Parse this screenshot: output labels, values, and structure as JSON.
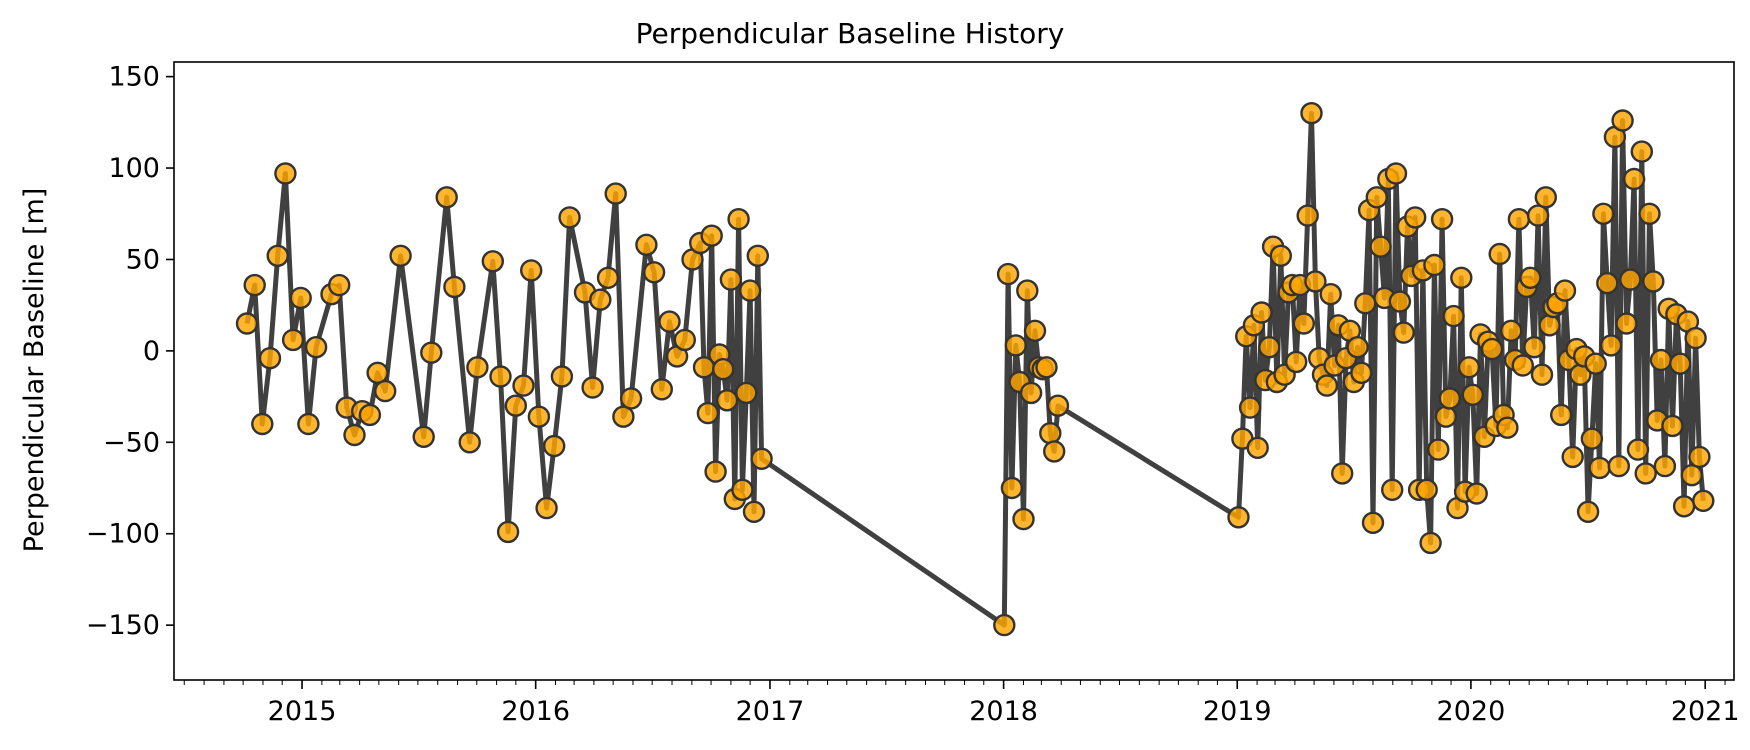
{
  "chart_data": {
    "type": "scatter",
    "title": "Perpendicular Baseline History",
    "xlabel": "",
    "ylabel": "Perpendicular Baseline [m]",
    "xlim": [
      "2014-06-15",
      "2021-02-15"
    ],
    "ylim": [
      -180,
      158
    ],
    "xticks": [
      "2015",
      "2016",
      "2017",
      "2018",
      "2019",
      "2020",
      "2021"
    ],
    "yticks": [
      150,
      100,
      50,
      0,
      -50,
      -100,
      -150
    ],
    "ytick_labels": [
      "150",
      "100",
      "50",
      "0",
      "−50",
      "−100",
      "−150"
    ],
    "grid": false,
    "colors": {
      "marker_fill": "#FFA500",
      "marker_edge": "#333333",
      "line": "#404040",
      "marker_inner_line": "#d98b00"
    },
    "series": [
      {
        "points": [
          [
            "2014-10-07",
            15
          ],
          [
            "2014-10-19",
            36
          ],
          [
            "2014-10-31",
            -40
          ],
          [
            "2014-11-12",
            -4
          ],
          [
            "2014-11-24",
            52
          ],
          [
            "2014-12-06",
            97
          ],
          [
            "2014-12-18",
            6
          ],
          [
            "2014-12-30",
            29
          ],
          [
            "2015-01-11",
            -40
          ],
          [
            "2015-01-23",
            2
          ],
          [
            "2015-02-16",
            31
          ],
          [
            "2015-02-28",
            36
          ],
          [
            "2015-03-12",
            -31
          ],
          [
            "2015-03-24",
            -46
          ],
          [
            "2015-04-05",
            -33
          ],
          [
            "2015-04-17",
            -35
          ],
          [
            "2015-04-29",
            -12
          ],
          [
            "2015-05-11",
            -22
          ],
          [
            "2015-06-04",
            52
          ],
          [
            "2015-07-10",
            -47
          ],
          [
            "2015-07-22",
            -1
          ],
          [
            "2015-08-15",
            84
          ],
          [
            "2015-08-27",
            35
          ],
          [
            "2015-09-20",
            -50
          ],
          [
            "2015-10-02",
            -9
          ],
          [
            "2015-10-26",
            49
          ],
          [
            "2015-11-07",
            -14
          ],
          [
            "2015-11-19",
            -99
          ],
          [
            "2015-12-01",
            -30
          ],
          [
            "2015-12-13",
            -19
          ],
          [
            "2015-12-25",
            44
          ],
          [
            "2016-01-06",
            -36
          ],
          [
            "2016-01-18",
            -86
          ],
          [
            "2016-01-30",
            -52
          ],
          [
            "2016-02-11",
            -14
          ],
          [
            "2016-02-23",
            73
          ],
          [
            "2016-03-18",
            32
          ],
          [
            "2016-03-30",
            -20
          ],
          [
            "2016-04-11",
            28
          ],
          [
            "2016-04-23",
            40
          ],
          [
            "2016-05-05",
            86
          ],
          [
            "2016-05-17",
            -36
          ],
          [
            "2016-05-29",
            -26
          ],
          [
            "2016-06-22",
            58
          ],
          [
            "2016-07-04",
            43
          ],
          [
            "2016-07-16",
            -21
          ],
          [
            "2016-07-28",
            16
          ],
          [
            "2016-08-09",
            -3
          ],
          [
            "2016-08-21",
            6
          ],
          [
            "2016-09-02",
            50
          ],
          [
            "2016-09-14",
            59
          ],
          [
            "2016-09-20",
            -9
          ],
          [
            "2016-09-26",
            -34
          ],
          [
            "2016-10-02",
            63
          ],
          [
            "2016-10-08",
            -66
          ],
          [
            "2016-10-14",
            -2
          ],
          [
            "2016-10-20",
            -10
          ],
          [
            "2016-10-26",
            -27
          ],
          [
            "2016-11-01",
            39
          ],
          [
            "2016-11-07",
            -81
          ],
          [
            "2016-11-13",
            72
          ],
          [
            "2016-11-19",
            -76
          ],
          [
            "2016-11-25",
            -23
          ],
          [
            "2016-12-01",
            33
          ],
          [
            "2016-12-07",
            -88
          ],
          [
            "2016-12-13",
            52
          ],
          [
            "2016-12-19",
            -59
          ],
          [
            "2018-01-02",
            -150
          ],
          [
            "2018-01-08",
            42
          ],
          [
            "2018-01-14",
            -75
          ],
          [
            "2018-01-20",
            3
          ],
          [
            "2018-01-26",
            -17
          ],
          [
            "2018-02-01",
            -92
          ],
          [
            "2018-02-07",
            33
          ],
          [
            "2018-02-13",
            -23
          ],
          [
            "2018-02-19",
            11
          ],
          [
            "2018-02-25",
            -9
          ],
          [
            "2018-03-03",
            -10
          ],
          [
            "2018-03-09",
            -9
          ],
          [
            "2018-03-15",
            -45
          ],
          [
            "2018-03-21",
            -55
          ],
          [
            "2018-03-27",
            -30
          ],
          [
            "2019-01-03",
            -91
          ],
          [
            "2019-01-09",
            -48
          ],
          [
            "2019-01-15",
            8
          ],
          [
            "2019-01-21",
            -31
          ],
          [
            "2019-01-27",
            14
          ],
          [
            "2019-02-02",
            -53
          ],
          [
            "2019-02-08",
            21
          ],
          [
            "2019-02-14",
            -16
          ],
          [
            "2019-02-20",
            2
          ],
          [
            "2019-02-26",
            57
          ],
          [
            "2019-03-04",
            -17
          ],
          [
            "2019-03-10",
            52
          ],
          [
            "2019-03-16",
            -13
          ],
          [
            "2019-03-22",
            32
          ],
          [
            "2019-03-28",
            36
          ],
          [
            "2019-04-03",
            -6
          ],
          [
            "2019-04-09",
            36
          ],
          [
            "2019-04-15",
            15
          ],
          [
            "2019-04-21",
            74
          ],
          [
            "2019-04-27",
            130
          ],
          [
            "2019-05-03",
            38
          ],
          [
            "2019-05-09",
            -4
          ],
          [
            "2019-05-15",
            -13
          ],
          [
            "2019-05-21",
            -19
          ],
          [
            "2019-05-27",
            31
          ],
          [
            "2019-06-02",
            -8
          ],
          [
            "2019-06-08",
            14
          ],
          [
            "2019-06-14",
            -67
          ],
          [
            "2019-06-20",
            -4
          ],
          [
            "2019-06-26",
            11
          ],
          [
            "2019-07-02",
            -17
          ],
          [
            "2019-07-08",
            2
          ],
          [
            "2019-07-14",
            -12
          ],
          [
            "2019-07-20",
            26
          ],
          [
            "2019-07-26",
            77
          ],
          [
            "2019-08-01",
            -94
          ],
          [
            "2019-08-07",
            84
          ],
          [
            "2019-08-13",
            57
          ],
          [
            "2019-08-19",
            29
          ],
          [
            "2019-08-25",
            94
          ],
          [
            "2019-08-31",
            -76
          ],
          [
            "2019-09-06",
            97
          ],
          [
            "2019-09-12",
            27
          ],
          [
            "2019-09-18",
            10
          ],
          [
            "2019-09-24",
            68
          ],
          [
            "2019-09-30",
            41
          ],
          [
            "2019-10-06",
            73
          ],
          [
            "2019-10-12",
            -76
          ],
          [
            "2019-10-18",
            44
          ],
          [
            "2019-10-24",
            -76
          ],
          [
            "2019-10-30",
            -105
          ],
          [
            "2019-11-05",
            47
          ],
          [
            "2019-11-11",
            -54
          ],
          [
            "2019-11-17",
            72
          ],
          [
            "2019-11-23",
            -36
          ],
          [
            "2019-11-29",
            -26
          ],
          [
            "2019-12-05",
            19
          ],
          [
            "2019-12-11",
            -86
          ],
          [
            "2019-12-17",
            40
          ],
          [
            "2019-12-23",
            -77
          ],
          [
            "2019-12-29",
            -9
          ],
          [
            "2020-01-04",
            -24
          ],
          [
            "2020-01-10",
            -78
          ],
          [
            "2020-01-16",
            9
          ],
          [
            "2020-01-22",
            -47
          ],
          [
            "2020-01-28",
            5
          ],
          [
            "2020-02-03",
            1
          ],
          [
            "2020-02-09",
            -41
          ],
          [
            "2020-02-15",
            53
          ],
          [
            "2020-02-21",
            -35
          ],
          [
            "2020-02-27",
            -42
          ],
          [
            "2020-03-04",
            11
          ],
          [
            "2020-03-10",
            -5
          ],
          [
            "2020-03-16",
            72
          ],
          [
            "2020-03-22",
            -8
          ],
          [
            "2020-03-28",
            35
          ],
          [
            "2020-04-03",
            40
          ],
          [
            "2020-04-09",
            2
          ],
          [
            "2020-04-15",
            74
          ],
          [
            "2020-04-21",
            -13
          ],
          [
            "2020-04-27",
            84
          ],
          [
            "2020-05-03",
            14
          ],
          [
            "2020-05-09",
            24
          ],
          [
            "2020-05-15",
            26
          ],
          [
            "2020-05-21",
            -35
          ],
          [
            "2020-05-27",
            33
          ],
          [
            "2020-06-02",
            -5
          ],
          [
            "2020-06-08",
            -58
          ],
          [
            "2020-06-14",
            1
          ],
          [
            "2020-06-20",
            -13
          ],
          [
            "2020-06-26",
            -3
          ],
          [
            "2020-07-02",
            -88
          ],
          [
            "2020-07-08",
            -48
          ],
          [
            "2020-07-14",
            -7
          ],
          [
            "2020-07-20",
            -64
          ],
          [
            "2020-07-26",
            75
          ],
          [
            "2020-08-01",
            37
          ],
          [
            "2020-08-07",
            3
          ],
          [
            "2020-08-13",
            117
          ],
          [
            "2020-08-19",
            -63
          ],
          [
            "2020-08-25",
            126
          ],
          [
            "2020-08-31",
            15
          ],
          [
            "2020-09-06",
            39
          ],
          [
            "2020-09-12",
            94
          ],
          [
            "2020-09-18",
            -54
          ],
          [
            "2020-09-24",
            109
          ],
          [
            "2020-09-30",
            -67
          ],
          [
            "2020-10-06",
            75
          ],
          [
            "2020-10-12",
            38
          ],
          [
            "2020-10-18",
            -38
          ],
          [
            "2020-10-24",
            -5
          ],
          [
            "2020-10-30",
            -63
          ],
          [
            "2020-11-05",
            23
          ],
          [
            "2020-11-11",
            -41
          ],
          [
            "2020-11-17",
            20
          ],
          [
            "2020-11-23",
            -7
          ],
          [
            "2020-11-29",
            -85
          ],
          [
            "2020-12-05",
            16
          ],
          [
            "2020-12-11",
            -68
          ],
          [
            "2020-12-17",
            7
          ],
          [
            "2020-12-23",
            -58
          ],
          [
            "2020-12-29",
            -82
          ]
        ]
      }
    ]
  }
}
